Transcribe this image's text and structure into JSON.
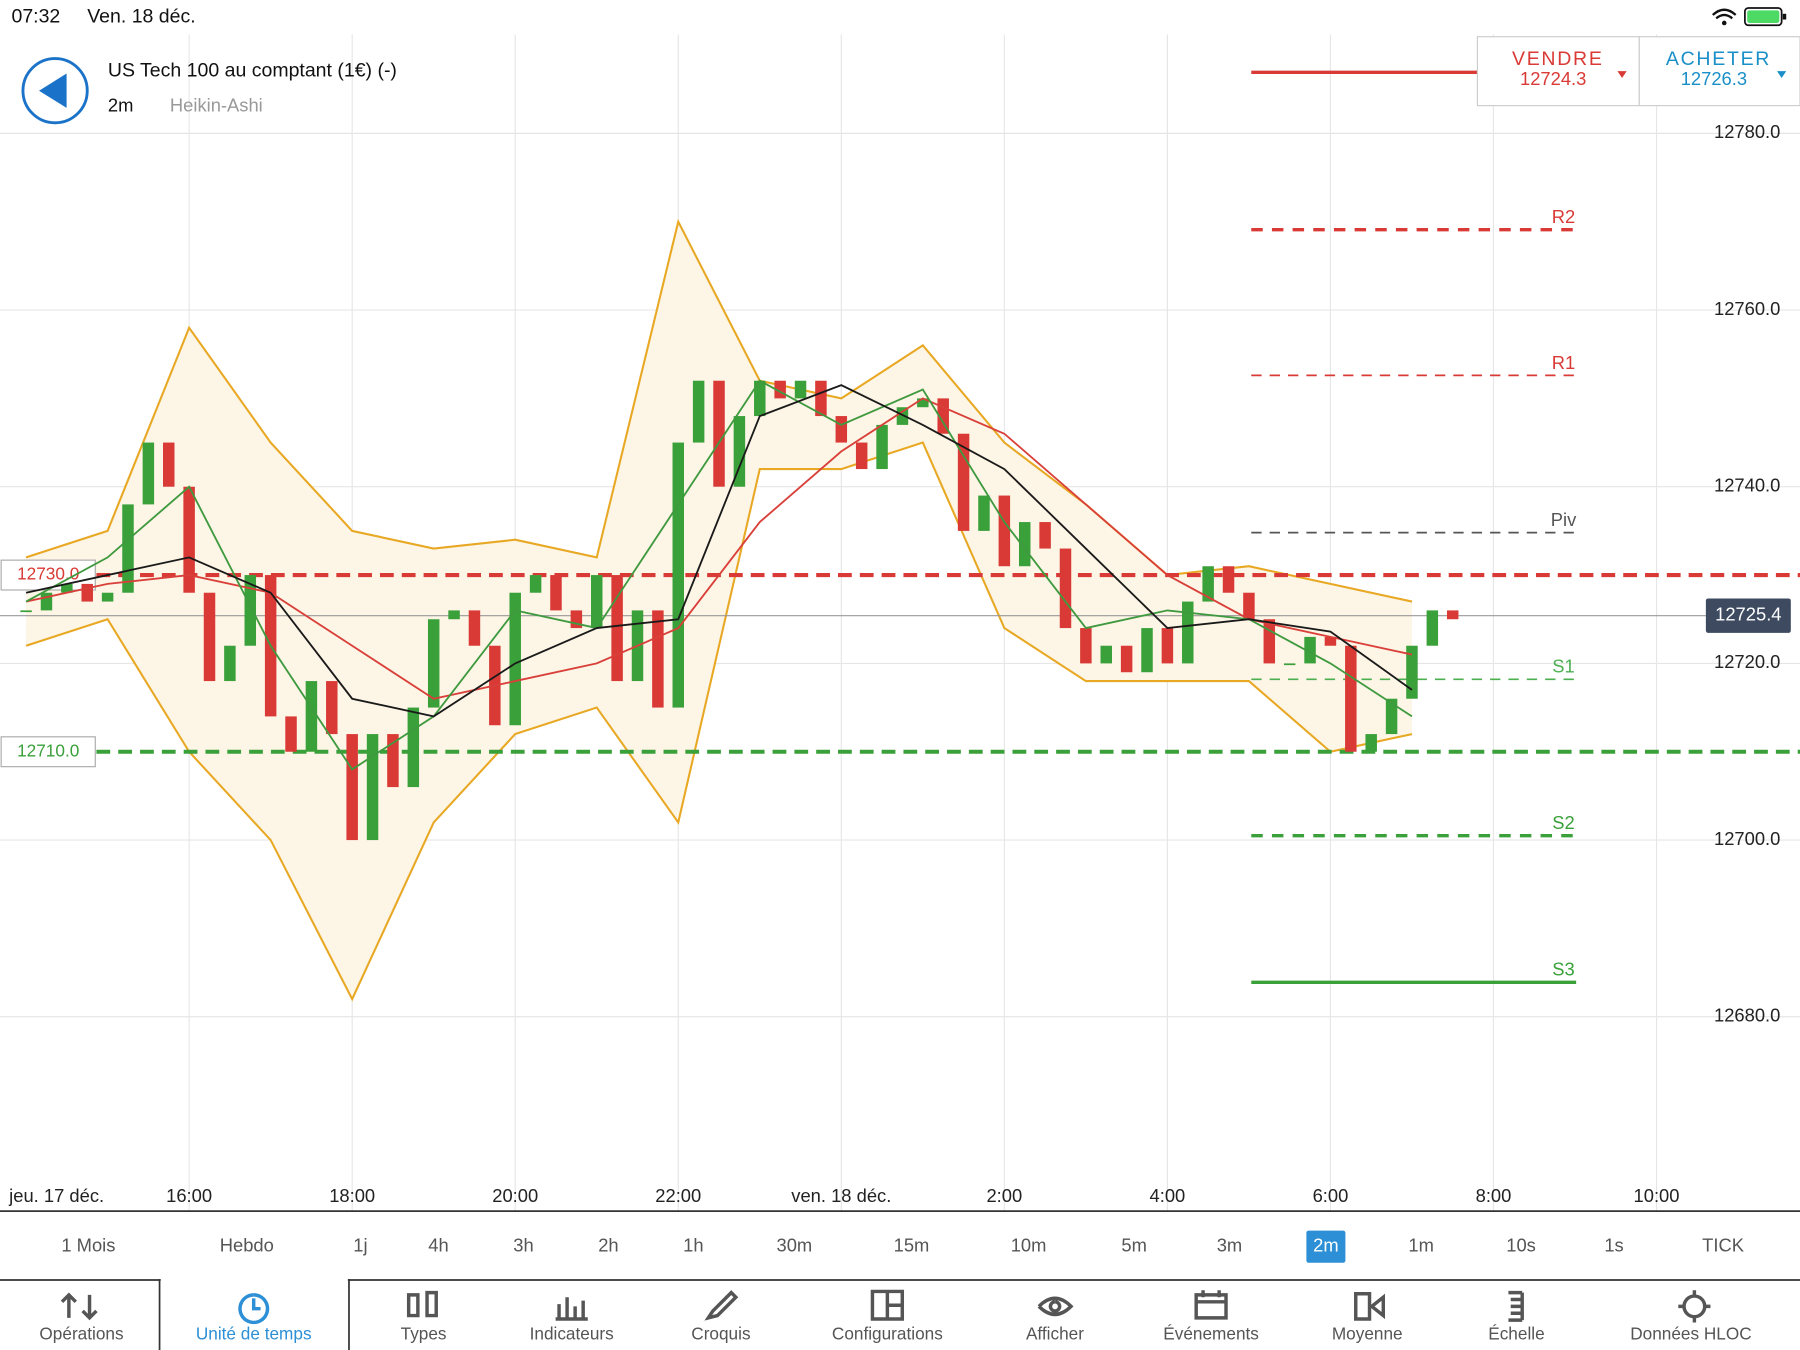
{
  "status_bar": {
    "time": "07:32",
    "date": "Ven. 18 déc."
  },
  "header": {
    "instrument": "US Tech 100 au comptant (1€) (-)",
    "interval": "2m",
    "chart_style": "Heikin-Ashi"
  },
  "quotes": {
    "sell": {
      "label": "VENDRE",
      "price": "12724.3"
    },
    "buy": {
      "label": "ACHETER",
      "price": "12726.3"
    }
  },
  "chart_data": {
    "type": "candlestick",
    "up_color": "#3aa03a",
    "down_color": "#d93a36",
    "x": [
      14.0,
      14.25,
      14.5,
      14.75,
      15.0,
      15.25,
      15.5,
      15.75,
      16.0,
      16.25,
      16.5,
      16.75,
      17.0,
      17.25,
      17.5,
      17.75,
      18.0,
      18.25,
      18.5,
      18.75,
      19.0,
      19.25,
      19.5,
      19.75,
      20.0,
      20.25,
      20.5,
      20.75,
      21.0,
      21.25,
      21.5,
      21.75,
      22.0,
      22.25,
      22.5,
      22.75,
      23.0,
      23.25,
      23.5,
      23.75,
      24.0,
      24.25,
      24.5,
      24.75,
      25.0,
      25.25,
      25.5,
      25.75,
      26.0,
      26.25,
      26.5,
      26.75,
      27.0,
      27.25,
      27.5,
      27.75,
      28.0,
      28.25,
      28.5,
      28.75,
      29.0,
      29.25,
      29.5,
      29.75,
      30.0,
      30.25,
      30.5,
      30.75,
      31.0,
      31.25,
      31.5
    ],
    "values": [
      12726,
      12728,
      12729,
      12727,
      12728,
      12738,
      12745,
      12740,
      12728,
      12718,
      12722,
      12730,
      12714,
      12710,
      12718,
      12712,
      12700,
      12712,
      12706,
      12715,
      12725,
      12726,
      12722,
      12713,
      12728,
      12730,
      12726,
      12724,
      12730,
      12718,
      12726,
      12715,
      12745,
      12752,
      12740,
      12748,
      12752,
      12750,
      12752,
      12748,
      12745,
      12742,
      12747,
      12749,
      12750,
      12746,
      12735,
      12739,
      12731,
      12736,
      12733,
      12724,
      12720,
      12722,
      12719,
      12724,
      12720,
      12727,
      12731,
      12728,
      12725,
      12720,
      12720,
      12723,
      12722,
      12710,
      12712,
      12716,
      12722,
      12726,
      12725
    ],
    "line_x": [
      14,
      15,
      16,
      17,
      18,
      19,
      20,
      21,
      22,
      23,
      24,
      25,
      26,
      27,
      28,
      29,
      30,
      31
    ],
    "band": {
      "color": "#e8a823",
      "fill": "#fdf5e6",
      "upper": [
        12732,
        12735,
        12758,
        12745,
        12735,
        12733,
        12734,
        12732,
        12770,
        12752,
        12750,
        12756,
        12745,
        12738,
        12730,
        12731,
        12729,
        12727
      ],
      "lower": [
        12722,
        12725,
        12710,
        12700,
        12682,
        12702,
        12712,
        12715,
        12702,
        12742,
        12742,
        12745,
        12724,
        12718,
        12718,
        12718,
        12710,
        12712
      ]
    },
    "lines": [
      {
        "color": "#d9403a",
        "values": [
          12727,
          12729,
          12730,
          12728,
          12722,
          12716,
          12718,
          12720,
          12724,
          12736,
          12744,
          12750,
          12746,
          12738,
          12730,
          12725,
          12723,
          12721
        ]
      },
      {
        "color": "#3f9a3f",
        "values": [
          12727,
          12732,
          12740,
          12722,
          12708,
          12714,
          12726,
          12724,
          12738,
          12752,
          12747,
          12751,
          12736,
          12724,
          12726,
          12725,
          12720,
          12714
        ]
      },
      {
        "color": "#1a1a1a",
        "values": [
          12728,
          12730,
          12732,
          12728,
          12716,
          12714,
          12720,
          12724,
          12725,
          12748,
          12751.5,
          12747,
          12742,
          12733,
          12724,
          12725,
          12723.6,
          12717
        ]
      }
    ],
    "xlim": [
      13.68,
      35.76
    ],
    "ylim": [
      12658,
      12791.2
    ],
    "xticks": [
      {
        "value": 16,
        "label": "16:00"
      },
      {
        "value": 18,
        "label": "18:00"
      },
      {
        "value": 20,
        "label": "20:00"
      },
      {
        "value": 22,
        "label": "22:00"
      },
      {
        "value": 24,
        "label": "ven. 18 déc."
      },
      {
        "value": 26,
        "label": "2:00"
      },
      {
        "value": 28,
        "label": "4:00"
      },
      {
        "value": 30,
        "label": "6:00"
      },
      {
        "value": 32,
        "label": "8:00"
      },
      {
        "value": 34,
        "label": "10:00"
      }
    ],
    "x_start_label": "jeu. 17 déc.",
    "yticks": [
      {
        "value": 12680,
        "label": "12680.0"
      },
      {
        "value": 12700,
        "label": "12700.0"
      },
      {
        "value": 12720,
        "label": "12720.0"
      },
      {
        "value": 12740,
        "label": "12740.0"
      },
      {
        "value": 12760,
        "label": "12760.0"
      },
      {
        "value": 12780,
        "label": "12780.0"
      }
    ],
    "grid": true,
    "levels": [
      {
        "name": "R2",
        "value": 12769.1,
        "color": "#d93a36",
        "style": "dashed"
      },
      {
        "name": "R1",
        "value": 12752.6,
        "color": "#d93a36",
        "style": "dashed-thin"
      },
      {
        "name": "Piv",
        "value": 12734.8,
        "color": "#555555",
        "style": "dashed-thin"
      },
      {
        "name": "S1",
        "value": 12718.2,
        "color": "#4caf50",
        "style": "dashed-thin"
      },
      {
        "name": "S2",
        "value": 12700.5,
        "color": "#3aa03a",
        "style": "dashed"
      },
      {
        "name": "S3",
        "value": 12683.9,
        "color": "#3aa03a",
        "style": "solid"
      }
    ],
    "alerts": [
      {
        "value": 12730,
        "label": "12730.0",
        "color": "#d93a36"
      },
      {
        "value": 12710,
        "label": "12710.0",
        "color": "#3aa03a"
      }
    ],
    "last_price": {
      "value": 12725.4,
      "label": "12725.4"
    }
  },
  "timeframes": {
    "items": [
      "1 Mois",
      "Hebdo",
      "1j",
      "4h",
      "3h",
      "2h",
      "1h",
      "30m",
      "15m",
      "10m",
      "5m",
      "3m",
      "2m",
      "1m",
      "10s",
      "1s",
      "TICK"
    ],
    "active": 12
  },
  "toolbar": {
    "items": [
      "Opérations",
      "Unité de temps",
      "Types",
      "Indicateurs",
      "Croquis",
      "Configurations",
      "Afficher",
      "Événements",
      "Moyenne",
      "Échelle",
      "Données HLOC"
    ],
    "active": 1
  }
}
